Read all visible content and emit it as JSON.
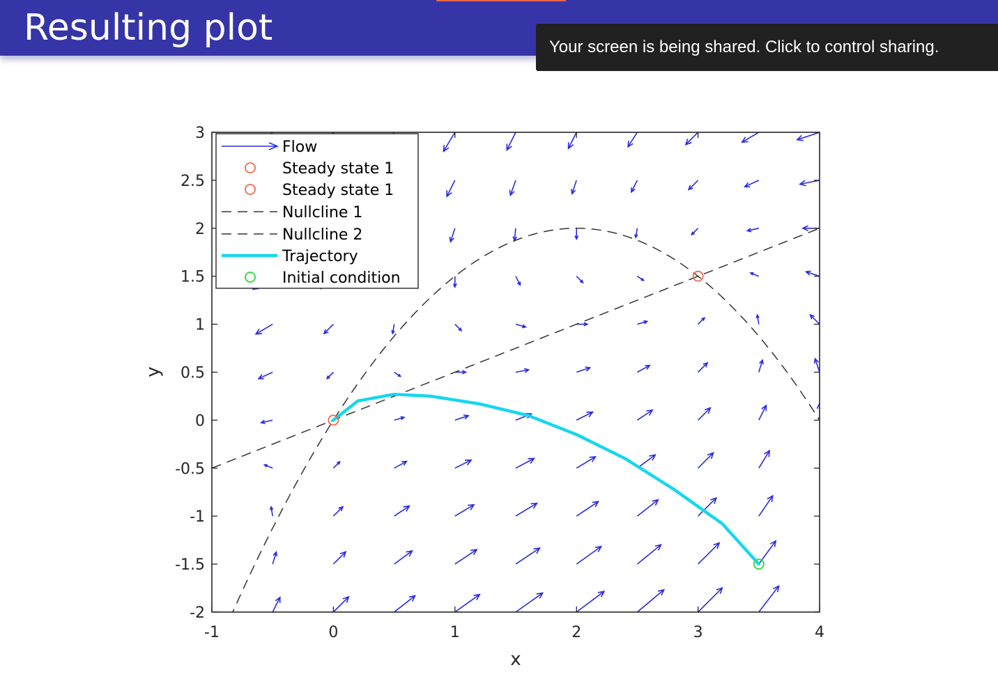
{
  "slide": {
    "title": "Resulting plot"
  },
  "screen_share": {
    "message": "Your screen is being shared. Click to control sharing."
  },
  "colors": {
    "title_bar": "#3535a8",
    "flow": "#2a2ae0",
    "steady_state": "#ee6a4e",
    "nullcline": "#333333",
    "trajectory": "#17d6ee",
    "initial_condition": "#3ed84a"
  },
  "chart_data": {
    "type": "line",
    "xlabel": "x",
    "ylabel": "y",
    "xlim": [
      -1,
      4
    ],
    "ylim": [
      -2,
      3
    ],
    "x_ticks": [
      "-1",
      "0",
      "1",
      "2",
      "3",
      "4"
    ],
    "y_ticks": [
      "3",
      "2.5",
      "2",
      "1.5",
      "1",
      "0.5",
      "0",
      "-0.5",
      "-1",
      "-1.5",
      "-2"
    ],
    "legend_position": "top-left",
    "legend": [
      "Flow",
      "Steady state 1",
      "Steady state 1",
      "Nullcline 1",
      "Nullcline 2",
      "Trajectory",
      "Initial condition"
    ],
    "flow_field": {
      "description": "quiver plot on grid x = -1..4 step 0.5, y = -2..3 step 0.5",
      "x_values": [
        -1,
        -0.5,
        0,
        0.5,
        1,
        1.5,
        2,
        2.5,
        3,
        3.5,
        4
      ],
      "y_values": [
        -2,
        -1.5,
        -1,
        -0.5,
        0,
        0.5,
        1,
        1.5,
        2,
        2.5,
        3
      ]
    },
    "steady_states": [
      {
        "name": "Steady state 1",
        "x": 0,
        "y": 0
      },
      {
        "name": "Steady state 1",
        "x": 3,
        "y": 1.5
      }
    ],
    "nullclines": [
      {
        "name": "Nullcline 1",
        "x": [
          -1,
          0,
          1,
          2,
          3,
          4
        ],
        "y": [
          -0.5,
          0,
          0.5,
          1,
          1.5,
          2
        ]
      },
      {
        "name": "Nullcline 2",
        "x": [
          -0.8,
          -0.5,
          0,
          0.5,
          1,
          1.5,
          2,
          2.5,
          3,
          3.5,
          4
        ],
        "y": [
          -2,
          -1.25,
          0,
          0.875,
          1.5,
          1.875,
          2,
          1.875,
          1.5,
          0.875,
          0
        ]
      }
    ],
    "trajectory": {
      "name": "Trajectory",
      "x": [
        0,
        0.2,
        0.5,
        0.8,
        1.2,
        1.6,
        2.0,
        2.4,
        2.8,
        3.2,
        3.5
      ],
      "y": [
        0,
        0.2,
        0.27,
        0.25,
        0.17,
        0.05,
        -0.15,
        -0.4,
        -0.72,
        -1.08,
        -1.5
      ]
    },
    "initial_condition": {
      "x": 3.5,
      "y": -1.5
    }
  }
}
